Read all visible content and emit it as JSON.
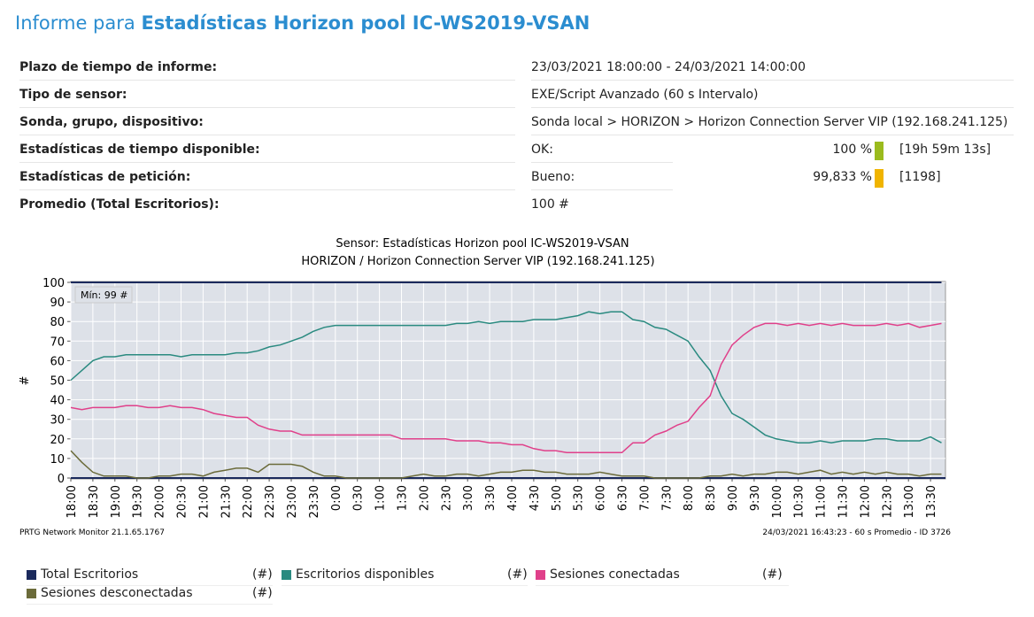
{
  "header": {
    "title_prefix": "Informe para",
    "title_name": "Estadísticas Horizon pool IC-WS2019-VSAN"
  },
  "table": {
    "rows": [
      {
        "label": "Plazo de tiempo de informe:",
        "value": "23/03/2021 18:00:00 - 24/03/2021 14:00:00"
      },
      {
        "label": "Tipo de sensor:",
        "value": "EXE/Script Avanzado (60 s Intervalo)"
      },
      {
        "label": "Sonda, grupo, dispositivo:",
        "value": "Sonda local > HORIZON > Horizon Connection Server VIP (192.168.241.125)"
      },
      {
        "label": "Estadísticas de tiempo disponible:",
        "status": "OK:",
        "percent": "100 %",
        "detail": "[19h 59m 13s]"
      },
      {
        "label": "Estadísticas de petición:",
        "status": "Bueno:",
        "percent": "99,833 %",
        "detail": "[1198]"
      },
      {
        "label": "Promedio (Total Escritorios):",
        "value": "100 #"
      }
    ]
  },
  "chart_data": {
    "type": "line",
    "title": "Sensor: Estadísticas Horizon pool IC-WS2019-VSAN",
    "subtitle": "HORIZON / Horizon Connection Server VIP (192.168.241.125)",
    "y_label": "#",
    "annotation": "Mín: 99 #",
    "categories": [
      "18:00",
      null,
      "18:30",
      null,
      "19:00",
      null,
      "19:30",
      null,
      "20:00",
      null,
      "20:30",
      null,
      "21:00",
      null,
      "21:30",
      null,
      "22:00",
      null,
      "22:30",
      null,
      "23:00",
      null,
      "23:30",
      null,
      "0:00",
      null,
      "0:30",
      null,
      "1:00",
      null,
      "1:30",
      null,
      "2:00",
      null,
      "2:30",
      null,
      "3:00",
      null,
      "3:30",
      null,
      "4:00",
      null,
      "4:30",
      null,
      "5:00",
      null,
      "5:30",
      null,
      "6:00",
      null,
      "6:30",
      null,
      "7:00",
      null,
      "7:30",
      null,
      "8:00",
      null,
      "8:30",
      null,
      "9:00",
      null,
      "9:30",
      null,
      "10:00",
      null,
      "10:30",
      null,
      "11:00",
      null,
      "11:30",
      null,
      "12:00",
      null,
      "12:30",
      null,
      "13:00",
      null,
      "13:30",
      null
    ],
    "series": [
      {
        "name": "Total Escritorios",
        "unit": "(#)",
        "color": "#1b2a5c",
        "values": [
          100,
          100,
          100,
          100,
          100,
          100,
          100,
          100,
          100,
          100,
          100,
          100,
          100,
          100,
          100,
          100,
          100,
          100,
          100,
          100,
          100,
          100,
          100,
          100,
          100,
          100,
          100,
          100,
          100,
          100,
          100,
          100,
          100,
          100,
          100,
          100,
          100,
          100,
          100,
          100,
          100,
          100,
          100,
          100,
          100,
          100,
          100,
          100,
          100,
          100,
          100,
          100,
          100,
          100,
          100,
          100,
          100,
          100,
          100,
          100,
          100,
          100,
          100,
          100,
          100,
          100,
          100,
          100,
          100,
          100,
          100,
          100,
          100,
          100,
          100,
          100,
          100,
          100,
          100,
          100
        ]
      },
      {
        "name": "Escritorios disponibles",
        "unit": "(#)",
        "color": "#2a8a80",
        "values": [
          50,
          55,
          60,
          62,
          62,
          63,
          63,
          63,
          63,
          63,
          62,
          63,
          63,
          63,
          63,
          64,
          64,
          65,
          67,
          68,
          70,
          72,
          75,
          77,
          78,
          78,
          78,
          78,
          78,
          78,
          78,
          78,
          78,
          78,
          78,
          79,
          79,
          80,
          79,
          80,
          80,
          80,
          81,
          81,
          81,
          82,
          83,
          85,
          84,
          85,
          85,
          81,
          80,
          77,
          76,
          73,
          70,
          62,
          55,
          42,
          33,
          30,
          26,
          22,
          20,
          19,
          18,
          18,
          19,
          18,
          19,
          19,
          19,
          20,
          20,
          19,
          19,
          19,
          21,
          18
        ]
      },
      {
        "name": "Sesiones conectadas",
        "unit": "(#)",
        "color": "#e0408a",
        "values": [
          36,
          35,
          36,
          36,
          36,
          37,
          37,
          36,
          36,
          37,
          36,
          36,
          35,
          33,
          32,
          31,
          31,
          27,
          25,
          24,
          24,
          22,
          22,
          22,
          22,
          22,
          22,
          22,
          22,
          22,
          20,
          20,
          20,
          20,
          20,
          19,
          19,
          19,
          18,
          18,
          17,
          17,
          15,
          14,
          14,
          13,
          13,
          13,
          13,
          13,
          13,
          18,
          18,
          22,
          24,
          27,
          29,
          36,
          42,
          58,
          68,
          73,
          77,
          79,
          79,
          78,
          79,
          78,
          79,
          78,
          79,
          78,
          78,
          78,
          79,
          78,
          79,
          77,
          78,
          79
        ]
      },
      {
        "name": "Sesiones desconectadas",
        "unit": "(#)",
        "color": "#6b6b3a",
        "values": [
          14,
          8,
          3,
          1,
          1,
          1,
          0,
          0,
          1,
          1,
          2,
          2,
          1,
          3,
          4,
          5,
          5,
          3,
          7,
          7,
          7,
          6,
          3,
          1,
          1,
          0,
          0,
          0,
          0,
          0,
          0,
          1,
          2,
          1,
          1,
          2,
          2,
          1,
          2,
          3,
          3,
          4,
          4,
          3,
          3,
          2,
          2,
          2,
          3,
          2,
          1,
          1,
          1,
          0,
          0,
          0,
          0,
          0,
          1,
          1,
          2,
          1,
          2,
          2,
          3,
          3,
          2,
          3,
          4,
          2,
          3,
          2,
          3,
          2,
          3,
          2,
          2,
          1,
          2,
          2
        ]
      }
    ],
    "ylim": [
      0,
      100
    ],
    "yticks": [
      0,
      10,
      20,
      30,
      40,
      50,
      60,
      70,
      80,
      90,
      100
    ],
    "grid": true
  },
  "footer": {
    "left": "PRTG Network Monitor 21.1.65.1767",
    "right": "24/03/2021 16:43:23 - 60 s Promedio - ID 3726"
  }
}
